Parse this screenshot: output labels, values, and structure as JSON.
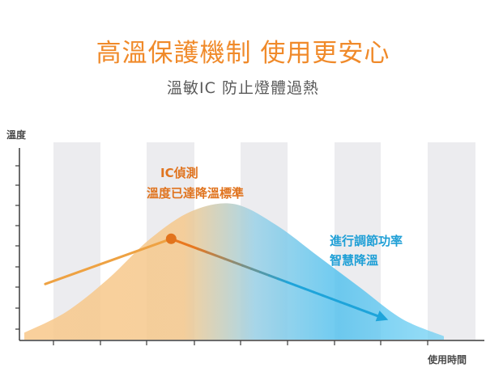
{
  "header": {
    "title": "高溫保護機制 使用更安心",
    "subtitle": "溫敏IC 防止燈體過熱"
  },
  "colors": {
    "title": "#f08a2a",
    "orange": "#f5b870",
    "blue": "#2eb3e8",
    "stripe": "#ececef",
    "dot": "#e2731c"
  },
  "chart_data": {
    "type": "area",
    "xlabel": "使用時間",
    "ylabel": "溫度",
    "grid": "vertical bands",
    "curve": {
      "x": [
        0,
        1,
        2,
        3,
        4,
        5,
        6,
        7,
        8,
        9,
        10
      ],
      "y": [
        0.4,
        1.6,
        3.5,
        5.8,
        7.4,
        7.8,
        6.6,
        4.8,
        3.0,
        1.2,
        0.2
      ]
    },
    "lines": [
      {
        "name": "",
        "x": [
          0.5,
          3.5
        ],
        "y": [
          3.2,
          5.8
        ]
      },
      {
        "name": "",
        "x": [
          3.5,
          8.6
        ],
        "y": [
          5.8,
          1.2
        ]
      }
    ],
    "peak_point": {
      "x": 3.5,
      "y": 5.8
    },
    "annotations": [
      {
        "lines": [
          "IC偵測",
          "溫度已達降溫標準"
        ],
        "color": "orange"
      },
      {
        "lines": [
          "進行調節功率",
          "智慧降溫"
        ],
        "color": "blue"
      }
    ]
  }
}
